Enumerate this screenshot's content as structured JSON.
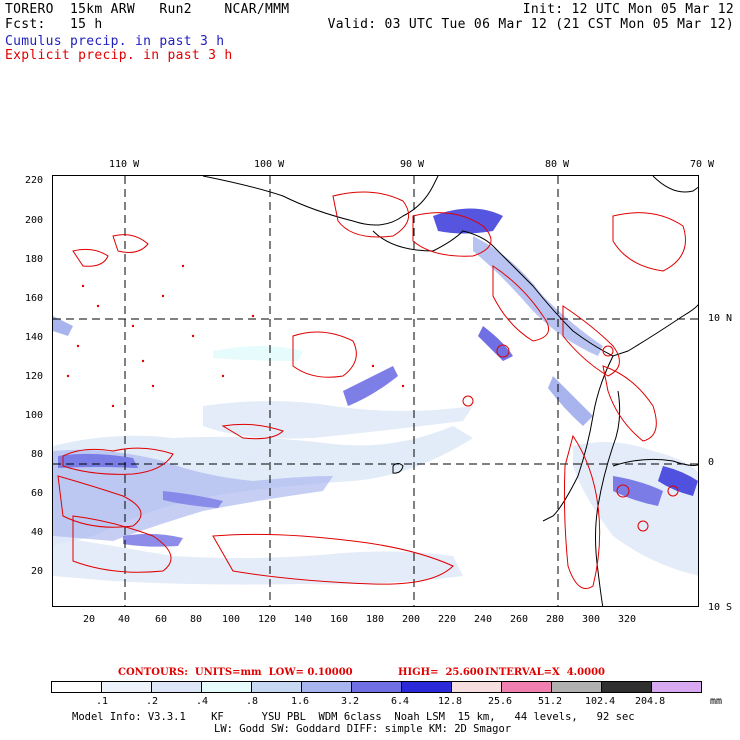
{
  "header": {
    "model": "TORERO  15km ARW   Run2    NCAR/MMM",
    "init": "Init: 12 UTC Mon 05 Mar 12",
    "fcst": "Fcst:   15 h",
    "valid": "Valid: 03 UTC Tue 06 Mar 12 (21 CST Mon 05 Mar 12)",
    "field1": "Cumulus precip. in past 3 h",
    "field2": "Explicit precip. in past 3 h"
  },
  "axes": {
    "top_lon_labels": [
      "110 W",
      "100 W",
      "90 W",
      "80 W",
      "70 W"
    ],
    "right_lat_labels": [
      "10 N",
      "0",
      "10 S"
    ],
    "left_ticks": [
      "220",
      "200",
      "180",
      "160",
      "140",
      "120",
      "100",
      "80",
      "60",
      "40",
      "20"
    ],
    "bottom_ticks": [
      "20",
      "40",
      "60",
      "80",
      "100",
      "120",
      "140",
      "160",
      "180",
      "200",
      "220",
      "240",
      "260",
      "280",
      "300",
      "320"
    ]
  },
  "contour_info": {
    "label": "CONTOURS:  UNITS=mm  LOW= 0.10000",
    "high": "HIGH=  25.600",
    "interval": "INTERVAL=X  4.0000"
  },
  "legend": {
    "values": [
      ".1",
      ".2",
      ".4",
      ".8",
      "1.6",
      "3.2",
      "6.4",
      "12.8",
      "25.6",
      "51.2",
      "102.4",
      "204.8"
    ],
    "unit": "mm",
    "colors": [
      "#ffffff",
      "#eef2fb",
      "#dde7f7",
      "#e6fbfb",
      "#c8d8f2",
      "#a8b4ee",
      "#7070e4",
      "#2a2ad8",
      "#f6dde0",
      "#f080b0",
      "#b0b0b0",
      "#303030",
      "#d8a8f0"
    ]
  },
  "footer": {
    "line1": "Model Info: V3.3.1    KF      YSU PBL  WDM 6class  Noah LSM  15 km,   44 levels,   92 sec",
    "line2": "LW: Godd SW: Goddard DIFF: simple KM: 2D Smagor"
  }
}
